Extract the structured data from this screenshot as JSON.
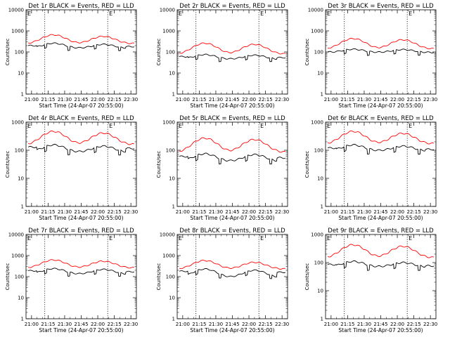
{
  "colors": {
    "events": "#000000",
    "lld": "#ff0000",
    "frame": "#000000"
  },
  "chart_data": [
    {
      "type": "line",
      "title": "Det 1r BLACK = Events, RED = LLD",
      "xlabel": "Start Time (24-Apr-07 20:55:00)",
      "ylabel": "Counts/sec",
      "y_scale": "log",
      "ylim": [
        1,
        10000
      ],
      "x_ticks": [
        "21:00",
        "21:15",
        "21:30",
        "21:45",
        "22:00",
        "22:15",
        "22:30"
      ],
      "y_ticks": [
        "1",
        "10",
        "100",
        "1000",
        "10000"
      ],
      "dotted_lines_at": [
        "21:12",
        "22:09"
      ],
      "gap_marks_at": [
        "21:12",
        "21:33",
        "21:57",
        "22:19"
      ],
      "annotation": "E",
      "series": [
        {
          "name": "BLACK = Events",
          "peaks": [
            260,
            230
          ],
          "trough": 150,
          "edge": 200
        },
        {
          "name": "RED = LLD",
          "peaks": [
            650,
            550
          ],
          "trough": 250,
          "edge": 230
        }
      ]
    },
    {
      "type": "line",
      "title": "Det 2r BLACK = Events, RED = LLD",
      "xlabel": "Start Time (24-Apr-07 20:55:00)",
      "ylabel": "Counts/sec",
      "y_scale": "log",
      "ylim": [
        1,
        10000
      ],
      "x_ticks": [
        "21:00",
        "21:15",
        "21:30",
        "21:45",
        "22:00",
        "22:15",
        "22:30"
      ],
      "y_ticks": [
        "1",
        "10",
        "100",
        "1000",
        "10000"
      ],
      "dotted_lines_at": [
        "21:12",
        "22:09"
      ],
      "gap_marks_at": [
        "21:12",
        "21:33",
        "21:57",
        "22:19"
      ],
      "annotation": "E",
      "series": [
        {
          "name": "BLACK = Events",
          "peaks": [
            75,
            70
          ],
          "trough": 45,
          "edge": 60
        },
        {
          "name": "RED = LLD",
          "peaks": [
            260,
            230
          ],
          "trough": 80,
          "edge": 75
        }
      ]
    },
    {
      "type": "line",
      "title": "Det 3r BLACK = Events, RED = LLD",
      "xlabel": "Start Time (24-Apr-07 20:55:00)",
      "ylabel": "Counts/sec",
      "y_scale": "log",
      "ylim": [
        1,
        10000
      ],
      "x_ticks": [
        "21:00",
        "21:15",
        "21:30",
        "21:45",
        "22:00",
        "22:15",
        "22:30"
      ],
      "y_ticks": [
        "1",
        "10",
        "100",
        "1000",
        "10000"
      ],
      "dotted_lines_at": [
        "21:12",
        "22:09"
      ],
      "gap_marks_at": [
        "21:12",
        "21:33",
        "21:57",
        "22:19"
      ],
      "annotation": "E",
      "series": [
        {
          "name": "BLACK = Events",
          "peaks": [
            135,
            130
          ],
          "trough": 95,
          "edge": 100
        },
        {
          "name": "RED = LLD",
          "peaks": [
            430,
            380
          ],
          "trough": 140,
          "edge": 130
        }
      ]
    },
    {
      "type": "line",
      "title": "Det 4r BLACK = Events, RED = LLD",
      "xlabel": "Start Time (24-Apr-07 20:55:00)",
      "ylabel": "Counts/sec",
      "y_scale": "log",
      "ylim": [
        1,
        1000
      ],
      "x_ticks": [
        "21:00",
        "21:15",
        "21:30",
        "21:45",
        "22:00",
        "22:15",
        "22:30"
      ],
      "y_ticks": [
        "1",
        "10",
        "100",
        "1000"
      ],
      "dotted_lines_at": [
        "21:12",
        "22:09"
      ],
      "gap_marks_at": [
        "21:12",
        "21:33",
        "21:57",
        "22:19"
      ],
      "annotation": "E",
      "series": [
        {
          "name": "BLACK = Events",
          "peaks": [
            155,
            140
          ],
          "trough": 85,
          "edge": 130
        },
        {
          "name": "RED = LLD",
          "peaks": [
            470,
            410
          ],
          "trough": 160,
          "edge": 150
        }
      ]
    },
    {
      "type": "line",
      "title": "Det 5r BLACK = Events, RED = LLD",
      "xlabel": "Start Time (24-Apr-07 20:55:00)",
      "ylabel": "Counts/sec",
      "y_scale": "log",
      "ylim": [
        1,
        1000
      ],
      "x_ticks": [
        "21:00",
        "21:15",
        "21:30",
        "21:45",
        "22:00",
        "22:15",
        "22:30"
      ],
      "y_ticks": [
        "1",
        "10",
        "100",
        "1000"
      ],
      "dotted_lines_at": [
        "21:12",
        "22:09"
      ],
      "gap_marks_at": [
        "21:12",
        "21:33",
        "21:57",
        "22:19"
      ],
      "annotation": "E",
      "series": [
        {
          "name": "BLACK = Events",
          "peaks": [
            75,
            70
          ],
          "trough": 40,
          "edge": 60
        },
        {
          "name": "RED = LLD",
          "peaks": [
            270,
            240
          ],
          "trough": 85,
          "edge": 80
        }
      ]
    },
    {
      "type": "line",
      "title": "Det 6r BLACK = Events, RED = LLD",
      "xlabel": "Start Time (24-Apr-07 20:55:00)",
      "ylabel": "Counts/sec",
      "y_scale": "log",
      "ylim": [
        1,
        1000
      ],
      "x_ticks": [
        "21:00",
        "21:15",
        "21:30",
        "21:45",
        "22:00",
        "22:15",
        "22:30"
      ],
      "y_ticks": [
        "1",
        "10",
        "100",
        "1000"
      ],
      "dotted_lines_at": [
        "21:12",
        "22:09"
      ],
      "gap_marks_at": [
        "21:12",
        "21:33",
        "21:57",
        "22:19"
      ],
      "annotation": "E",
      "series": [
        {
          "name": "BLACK = Events",
          "peaks": [
            155,
            140
          ],
          "trough": 95,
          "edge": 120
        },
        {
          "name": "RED = LLD",
          "peaks": [
            470,
            400
          ],
          "trough": 170,
          "edge": 140
        }
      ]
    },
    {
      "type": "line",
      "title": "Det 7r BLACK = Events, RED = LLD",
      "xlabel": "Start Time (24-Apr-07 20:55:00)",
      "ylabel": "Counts/sec",
      "y_scale": "log",
      "ylim": [
        1,
        10000
      ],
      "x_ticks": [
        "21:00",
        "21:15",
        "21:30",
        "21:45",
        "22:00",
        "22:15",
        "22:30"
      ],
      "y_ticks": [
        "1",
        "10",
        "100",
        "1000",
        "10000"
      ],
      "dotted_lines_at": [
        "21:12",
        "22:09"
      ],
      "gap_marks_at": [
        "21:12",
        "21:33",
        "21:57",
        "22:19"
      ],
      "annotation": "E",
      "series": [
        {
          "name": "BLACK = Events",
          "peaks": [
            240,
            220
          ],
          "trough": 130,
          "edge": 190
        },
        {
          "name": "RED = LLD",
          "peaks": [
            620,
            540
          ],
          "trough": 260,
          "edge": 230
        }
      ]
    },
    {
      "type": "line",
      "title": "Det 8r BLACK = Events, RED = LLD",
      "xlabel": "Start Time (24-Apr-07 20:55:00)",
      "ylabel": "Counts/sec",
      "y_scale": "log",
      "ylim": [
        1,
        10000
      ],
      "x_ticks": [
        "21:00",
        "21:15",
        "21:30",
        "21:45",
        "22:00",
        "22:15",
        "22:30"
      ],
      "y_ticks": [
        "1",
        "10",
        "100",
        "1000",
        "10000"
      ],
      "dotted_lines_at": [
        "21:12",
        "22:09"
      ],
      "gap_marks_at": [
        "21:12",
        "21:33",
        "21:57",
        "22:19"
      ],
      "annotation": "E",
      "series": [
        {
          "name": "BLACK = Events",
          "peaks": [
            230,
            200
          ],
          "trough": 90,
          "edge": 180
        },
        {
          "name": "RED = LLD",
          "peaks": [
            580,
            480
          ],
          "trough": 230,
          "edge": 200
        }
      ]
    },
    {
      "type": "line",
      "title": "Det 9r BLACK = Events, RED = LLD",
      "xlabel": "Start Time (24-Apr-07 20:55:00)",
      "ylabel": "Counts/sec",
      "y_scale": "log",
      "ylim": [
        1,
        1000
      ],
      "x_ticks": [
        "21:00",
        "21:15",
        "21:30",
        "21:45",
        "22:00",
        "22:15",
        "22:30"
      ],
      "y_ticks": [
        "1",
        "10",
        "100",
        "1000"
      ],
      "dotted_lines_at": [
        "21:12",
        "22:09"
      ],
      "gap_marks_at": [
        "21:12",
        "21:33",
        "21:57",
        "22:19"
      ],
      "annotation": "E",
      "series": [
        {
          "name": "BLACK = Events",
          "peaks": [
            110,
            100
          ],
          "trough": 70,
          "edge": 85
        },
        {
          "name": "RED = LLD",
          "peaks": [
            430,
            380
          ],
          "trough": 150,
          "edge": 110
        }
      ]
    }
  ]
}
